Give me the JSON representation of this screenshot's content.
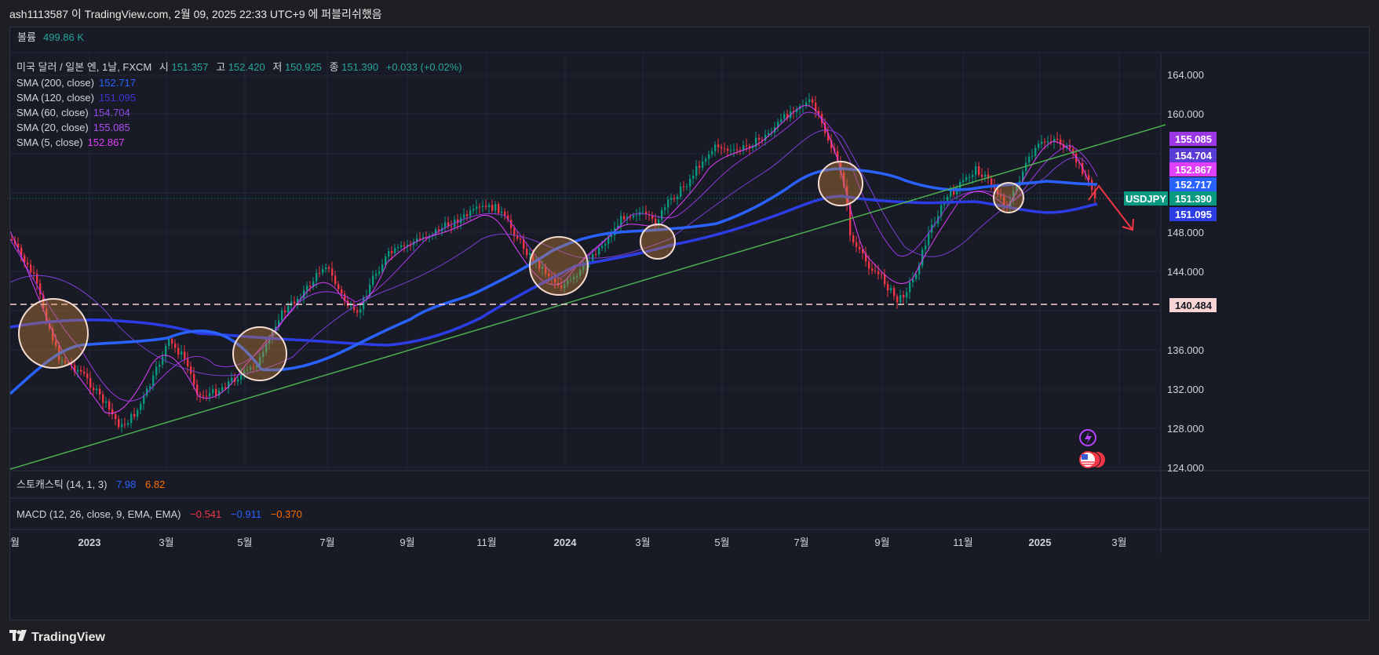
{
  "header": {
    "publisher_text": "ash1113587 이 TradingView.com, 2월 09, 2025 22:33 UTC+9 에 퍼블리쉬했음"
  },
  "volume": {
    "label": "볼륨",
    "value": "499.86 K"
  },
  "legend": {
    "symbol": "미국 달러 / 일본 엔, 1날, FXCM",
    "open_label": "시",
    "open": "151.357",
    "high_label": "고",
    "high": "152.420",
    "low_label": "저",
    "low": "150.925",
    "close_label": "종",
    "close": "151.390",
    "change": "+0.033 (+0.02%)",
    "sma": [
      {
        "label": "SMA (200, close)",
        "value": "152.717",
        "color": "#2962ff"
      },
      {
        "label": "SMA (120, close)",
        "value": "151.095",
        "color": "#3d33d6"
      },
      {
        "label": "SMA (60, close)",
        "value": "154.704",
        "color": "#7b3fd6"
      },
      {
        "label": "SMA (20, close)",
        "value": "155.085",
        "color": "#9c37e6"
      },
      {
        "label": "SMA (5, close)",
        "value": "152.867",
        "color": "#e040fb"
      }
    ]
  },
  "price_axis": {
    "ticks": [
      "164.000",
      "160.000",
      "148.000",
      "144.000",
      "136.000",
      "132.000",
      "128.000",
      "124.000"
    ],
    "tags": [
      {
        "value": "155.085",
        "color": "#9c37e6"
      },
      {
        "value": "154.704",
        "color": "#5a3dd6"
      },
      {
        "value": "152.867",
        "color": "#e040fb"
      },
      {
        "value": "152.717",
        "color": "#2962ff"
      },
      {
        "value": "151.390",
        "color": "#089981"
      },
      {
        "value": "151.095",
        "color": "#2d3de6"
      },
      {
        "value": "140.484",
        "color": "#f8d4d4"
      }
    ],
    "symbol_tag": "USDJPY"
  },
  "time_axis": {
    "labels": [
      "월",
      "2023",
      "3월",
      "5월",
      "7월",
      "9월",
      "11월",
      "2024",
      "3월",
      "5월",
      "7월",
      "9월",
      "11월",
      "2025",
      "3월"
    ]
  },
  "stochastic": {
    "label": "스토캐스틱 (14, 1, 3)",
    "k": "7.98",
    "k_color": "#2962ff",
    "d": "6.82",
    "d_color": "#ff6d00"
  },
  "macd": {
    "label": "MACD (12, 26, close, 9, EMA, EMA)",
    "hist": "−0.541",
    "hist_color": "#f23645",
    "macd": "−0.911",
    "macd_color": "#2962ff",
    "signal": "−0.370",
    "signal_color": "#ff6d00"
  },
  "footer": {
    "brand": "TradingView"
  },
  "icons": [
    "lightning-icon",
    "us-flag-icon"
  ],
  "colors": {
    "up": "#089981",
    "down": "#f23645",
    "trendline": "#4caf50",
    "annotation_arrow": "#f23645"
  }
}
